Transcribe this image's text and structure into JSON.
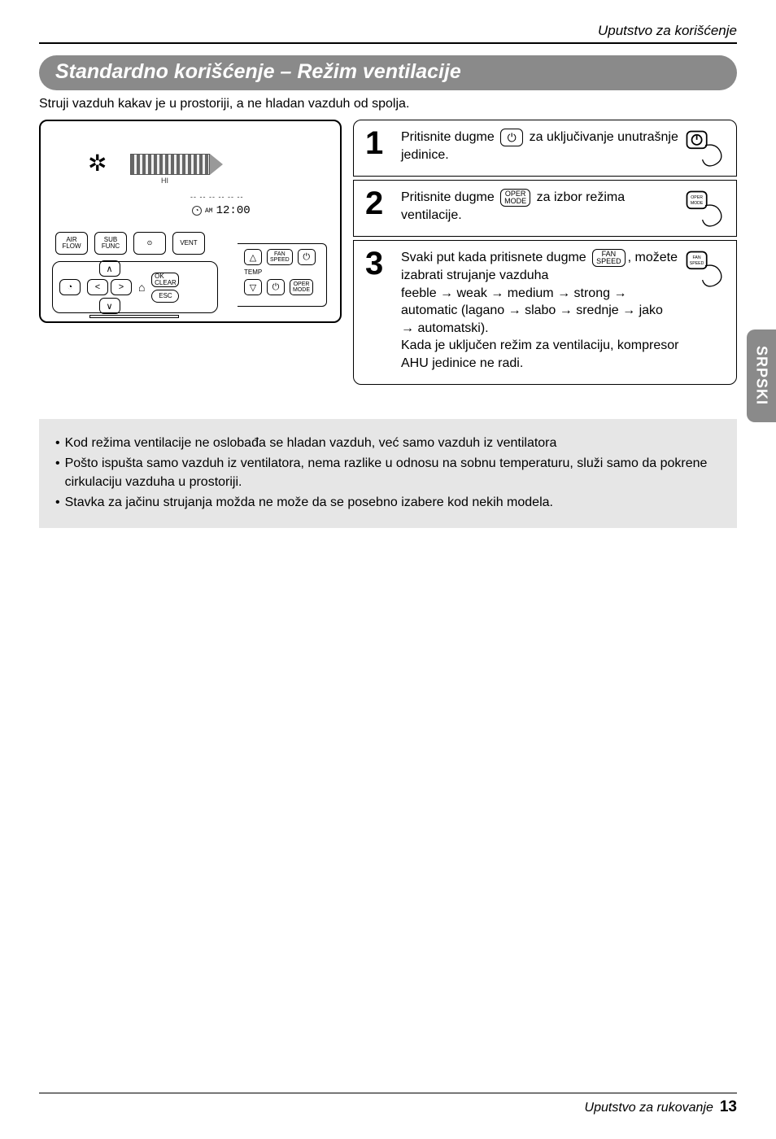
{
  "header": {
    "right": "Uputstvo za korišćenje"
  },
  "title": "Standardno korišćenje – Režim ventilacije",
  "subtitle": "Struji vazduh kakav je u prostoriji, a ne hladan vazduh od spolja.",
  "device": {
    "hi": "HI",
    "temp_dashes": "-- -- -- -- -- --",
    "clock_am": "AM",
    "clock_time": "12:00",
    "top_buttons": [
      "AIR\nFLOW",
      "SUB\nFUNC",
      "⊙",
      "VENT"
    ],
    "bottom": {
      "timer": "◔",
      "up": "∧",
      "down": "∨",
      "left": "<",
      "right": ">",
      "home": "⌂",
      "ok": "OK\nCLEAR",
      "esc": "ESC"
    },
    "aux": {
      "up": "△",
      "down": "▽",
      "fan_speed": "FAN\nSPEED",
      "power": "⏻",
      "oper_mode": "OPER\nMODE",
      "power2": "⏻",
      "temp": "TEMP"
    }
  },
  "steps": [
    {
      "n": "1",
      "pre": "Pritisnite dugme ",
      "btn": "⏻",
      "post": " za uključivanje unutrašnje jedinice.",
      "hand_btn": "⏻"
    },
    {
      "n": "2",
      "pre": "Pritisnite dugme ",
      "btn": "OPER\nMODE",
      "post": " za izbor režima ventilacije.",
      "hand_btn": "OPER\nMODE"
    },
    {
      "n": "3",
      "pre": "Svaki put kada pritisnete dugme ",
      "btn": "FAN\nSPEED",
      "mid1": ", možete izabrati strujanje vazduha",
      "flow1": "feeble → weak → medium → strong → automatic (lagano → slabo → srednje → jako → automatski).",
      "line2": "Kada je uključen režim za ventilaciju, kompresor AHU jedinice ne radi.",
      "hand_btn": "FAN\nSPEED"
    }
  ],
  "side_tab": "SRPSKI",
  "notes": [
    "Kod režima ventilacije ne oslobađa se hladan vazduh, već samo vazduh iz ventilatora",
    "Pošto ispušta samo vazduh iz ventilatora, nema razlike u odnosu na sobnu temperaturu, služi samo da pokrene cirkulaciju vazduha u prostoriji.",
    "Stavka za jačinu strujanja možda ne može da se posebno izabere kod nekih modela."
  ],
  "footer": {
    "text": "Uputstvo za rukovanje",
    "page": "13"
  },
  "colors": {
    "pill_bg": "#8a8a8a",
    "notes_bg": "#e6e6e6"
  }
}
